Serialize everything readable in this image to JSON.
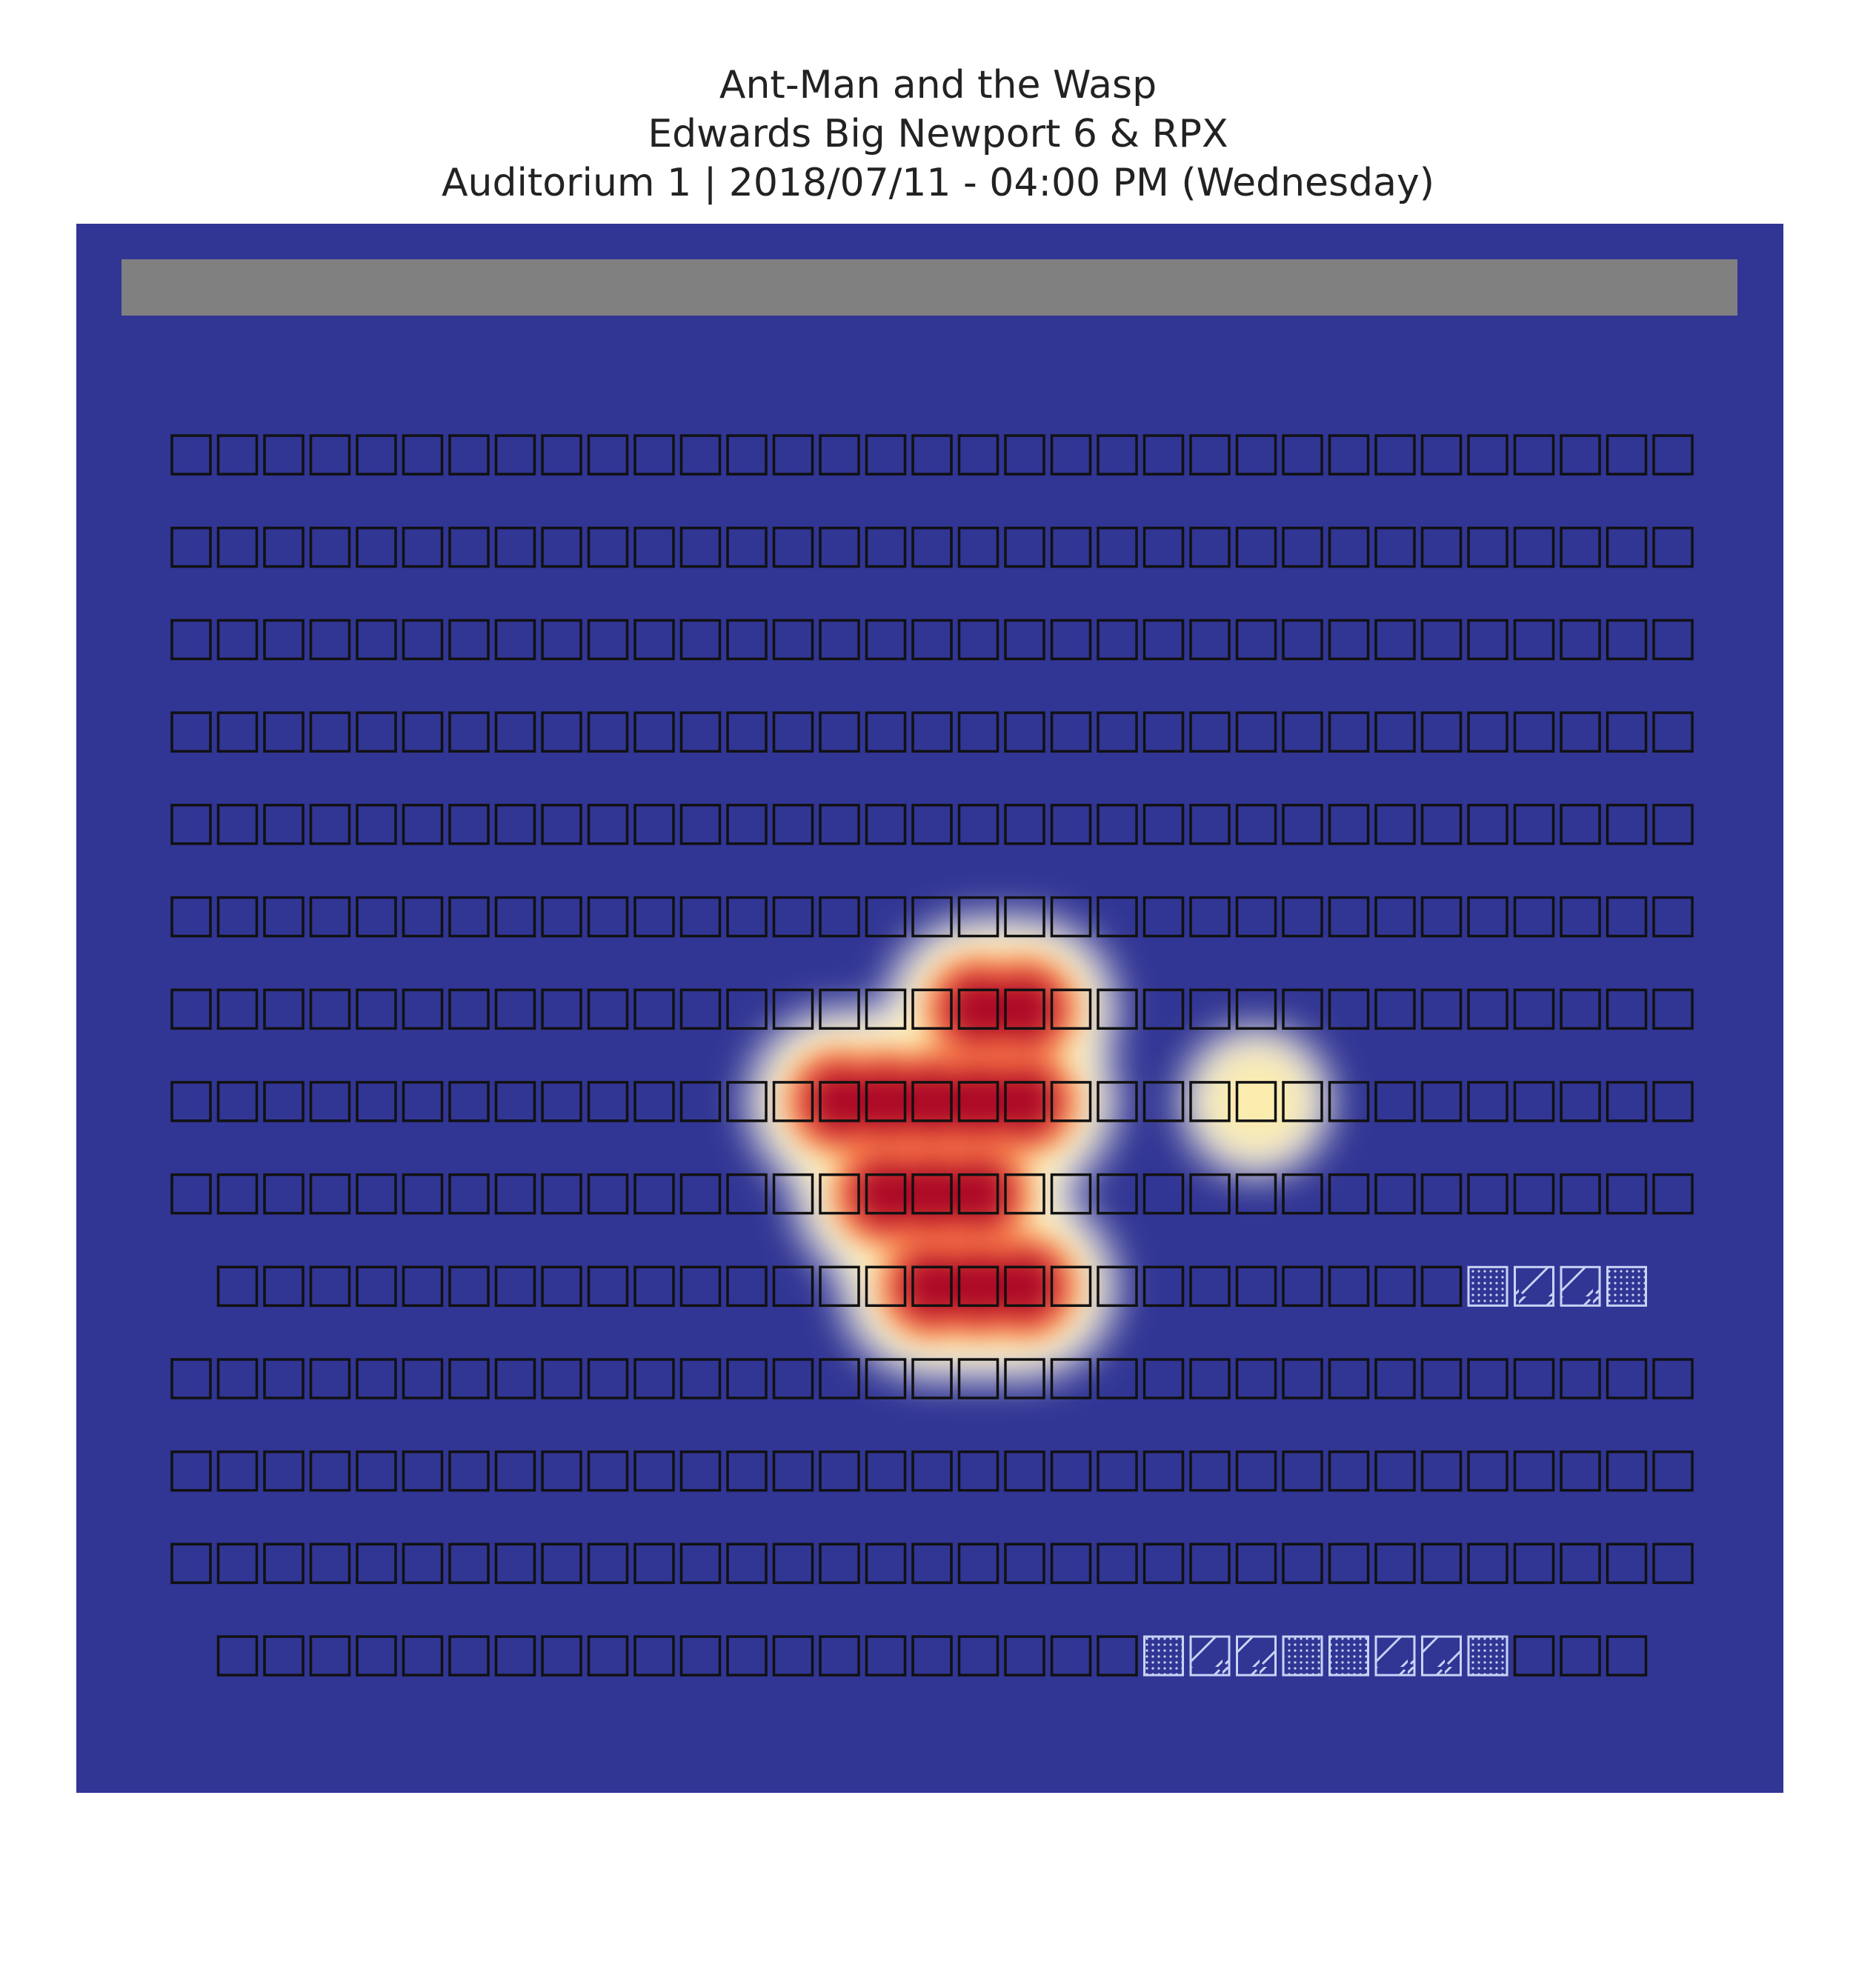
{
  "header": {
    "title": "Ant-Man and the Wasp",
    "theater": "Edwards Big Newport 6 & RPX",
    "showing": "Auditorium 1 | 2018/07/11 - 04:00 PM (Wednesday)"
  },
  "colors": {
    "background": "#313594",
    "screen": "#808080",
    "seat_outline": "#111111",
    "special_seat": "#c9d3f5"
  },
  "chart_data": {
    "type": "heatmap",
    "title": "Ant-Man and the Wasp",
    "description_free": true,
    "colormap": "RdYlBu_r",
    "rows": [
      {
        "row": 1,
        "seats": 33,
        "offset": 0
      },
      {
        "row": 2,
        "seats": 33,
        "offset": 0
      },
      {
        "row": 3,
        "seats": 33,
        "offset": 0
      },
      {
        "row": 4,
        "seats": 33,
        "offset": 0
      },
      {
        "row": 5,
        "seats": 33,
        "offset": 0
      },
      {
        "row": 6,
        "seats": 33,
        "offset": 0
      },
      {
        "row": 7,
        "seats": 33,
        "offset": 0
      },
      {
        "row": 8,
        "seats": 33,
        "offset": 0
      },
      {
        "row": 9,
        "seats": 33,
        "offset": 0
      },
      {
        "row": 10,
        "seats": 31,
        "offset": 1,
        "special": [
          {
            "seat": 28,
            "kind": "companion"
          },
          {
            "seat": 29,
            "kind": "wheelchair"
          },
          {
            "seat": 30,
            "kind": "wheelchair"
          },
          {
            "seat": 31,
            "kind": "companion"
          }
        ]
      },
      {
        "row": 11,
        "seats": 33,
        "offset": 0
      },
      {
        "row": 12,
        "seats": 33,
        "offset": 0
      },
      {
        "row": 13,
        "seats": 33,
        "offset": 0
      },
      {
        "row": 14,
        "seats": 31,
        "offset": 1,
        "special": [
          {
            "seat": 21,
            "kind": "companion"
          },
          {
            "seat": 22,
            "kind": "wheelchair"
          },
          {
            "seat": 23,
            "kind": "wheelchair"
          },
          {
            "seat": 24,
            "kind": "companion"
          },
          {
            "seat": 25,
            "kind": "companion"
          },
          {
            "seat": 26,
            "kind": "wheelchair"
          },
          {
            "seat": 27,
            "kind": "wheelchair"
          },
          {
            "seat": 28,
            "kind": "companion"
          }
        ]
      }
    ],
    "sold_seats": [
      {
        "row": 7,
        "seat": 18,
        "value": 1
      },
      {
        "row": 7,
        "seat": 19,
        "value": 1
      },
      {
        "row": 8,
        "seat": 15,
        "value": 1
      },
      {
        "row": 8,
        "seat": 16,
        "value": 1
      },
      {
        "row": 8,
        "seat": 17,
        "value": 1
      },
      {
        "row": 8,
        "seat": 18,
        "value": 1
      },
      {
        "row": 8,
        "seat": 19,
        "value": 1
      },
      {
        "row": 8,
        "seat": 24,
        "value": 1
      },
      {
        "row": 9,
        "seat": 16,
        "value": 1
      },
      {
        "row": 9,
        "seat": 17,
        "value": 1
      },
      {
        "row": 9,
        "seat": 18,
        "value": 1
      },
      {
        "row": 10,
        "seat": 16,
        "value": 1
      },
      {
        "row": 10,
        "seat": 17,
        "value": 1
      },
      {
        "row": 10,
        "seat": 18,
        "value": 1
      }
    ]
  }
}
